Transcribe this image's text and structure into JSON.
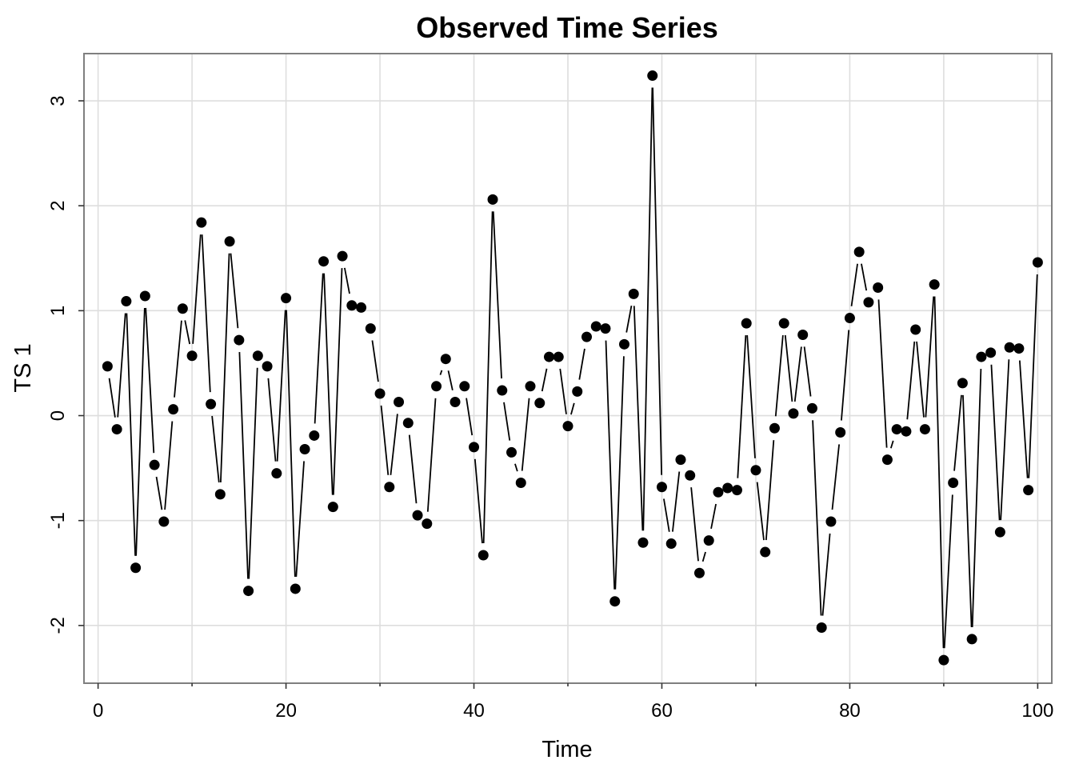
{
  "chart_data": {
    "type": "line",
    "title": "Observed Time Series",
    "xlabel": "Time",
    "ylabel": "TS 1",
    "xlim": [
      -1.5,
      101.5
    ],
    "ylim": [
      -2.55,
      3.45
    ],
    "xticks": [
      0,
      20,
      40,
      60,
      80,
      100
    ],
    "xminor_ticks": [
      10,
      30,
      50,
      70,
      90
    ],
    "yticks": [
      -2,
      -1,
      0,
      1,
      2,
      3
    ],
    "ytick_labels": [
      "-2",
      "-1",
      "0",
      "1",
      "2",
      "3"
    ],
    "grid": true,
    "markers": true,
    "x": [
      1,
      2,
      3,
      4,
      5,
      6,
      7,
      8,
      9,
      10,
      11,
      12,
      13,
      14,
      15,
      16,
      17,
      18,
      19,
      20,
      21,
      22,
      23,
      24,
      25,
      26,
      27,
      28,
      29,
      30,
      31,
      32,
      33,
      34,
      35,
      36,
      37,
      38,
      39,
      40,
      41,
      42,
      43,
      44,
      45,
      46,
      47,
      48,
      49,
      50,
      51,
      52,
      53,
      54,
      55,
      56,
      57,
      58,
      59,
      60,
      61,
      62,
      63,
      64,
      65,
      66,
      67,
      68,
      69,
      70,
      71,
      72,
      73,
      74,
      75,
      76,
      77,
      78,
      79,
      80,
      81,
      82,
      83,
      84,
      85,
      86,
      87,
      88,
      89,
      90,
      91,
      92,
      93,
      94,
      95,
      96,
      97,
      98,
      99,
      100
    ],
    "values": [
      0.47,
      -0.13,
      1.09,
      -1.45,
      1.14,
      -0.47,
      -1.01,
      0.06,
      1.02,
      0.57,
      1.84,
      0.11,
      -0.75,
      1.66,
      0.72,
      -1.67,
      0.57,
      0.47,
      -0.55,
      1.12,
      -1.65,
      -0.32,
      -0.19,
      1.47,
      -0.87,
      1.52,
      1.05,
      1.03,
      0.83,
      0.21,
      -0.68,
      0.13,
      -0.07,
      -0.95,
      -1.03,
      0.28,
      0.54,
      0.13,
      0.28,
      -0.3,
      -1.33,
      2.06,
      0.24,
      -0.35,
      -0.64,
      0.28,
      0.12,
      0.56,
      0.56,
      -0.1,
      0.23,
      0.75,
      0.85,
      0.83,
      -1.77,
      0.68,
      1.16,
      -1.21,
      3.24,
      -0.68,
      -1.22,
      -0.42,
      -0.57,
      -1.5,
      -1.19,
      -0.73,
      -0.69,
      -0.71,
      0.88,
      -0.52,
      -1.3,
      -0.12,
      0.88,
      0.02,
      0.77,
      0.07,
      -2.02,
      -1.01,
      -0.16,
      0.93,
      1.56,
      1.08,
      1.22,
      -0.42,
      -0.13,
      -0.15,
      0.82,
      -0.13,
      1.25,
      -2.33,
      -0.64,
      0.31,
      -2.13,
      0.56,
      0.6,
      -1.11,
      0.65,
      0.64,
      -0.71,
      1.46
    ]
  }
}
